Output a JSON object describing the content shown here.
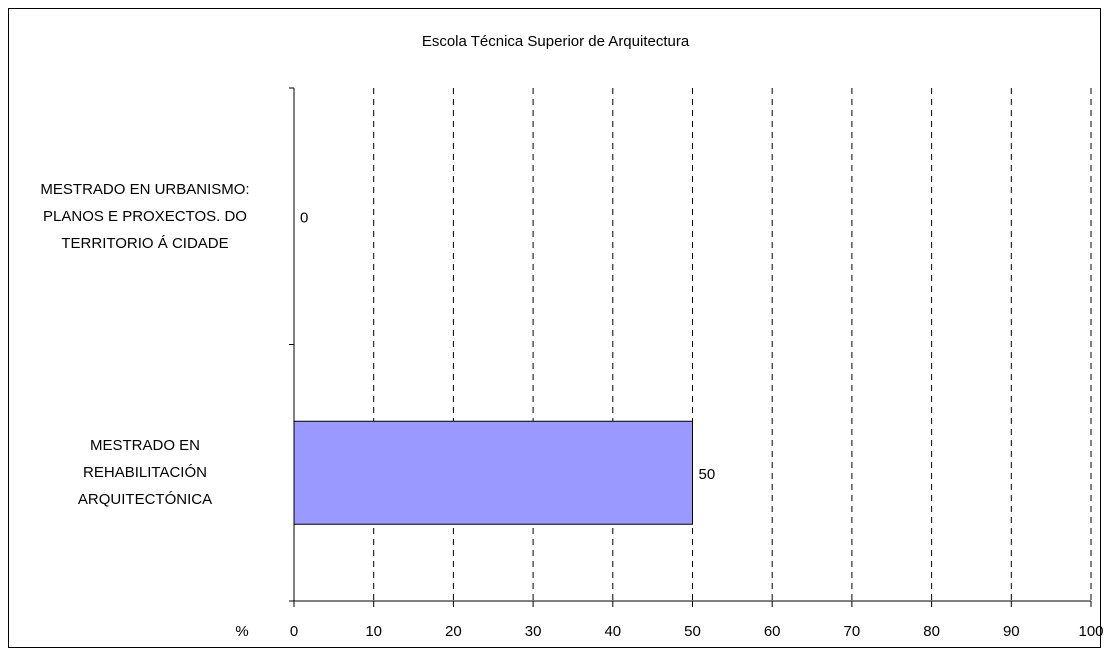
{
  "chart_data": {
    "type": "bar",
    "orientation": "horizontal",
    "title": "Escola Técnica Superior de Arquitectura",
    "xlabel": "%",
    "ylabel": "",
    "categories": [
      "MESTRADO EN URBANISMO: PLANOS E PROXECTOS. DO TERRITORIO Á CIDADE",
      "MESTRADO EN REHABILITACIÓN ARQUITECTÓNICA"
    ],
    "category_lines": [
      [
        "MESTRADO EN URBANISMO:",
        "PLANOS E PROXECTOS. DO",
        "TERRITORIO Á CIDADE"
      ],
      [
        "MESTRADO EN",
        "REHABILITACIÓN",
        "ARQUITECTÓNICA"
      ]
    ],
    "values": [
      0,
      50
    ],
    "data_labels": [
      "0",
      "50"
    ],
    "xlim": [
      0,
      100
    ],
    "xticks": [
      "0",
      "10",
      "20",
      "30",
      "40",
      "50",
      "60",
      "70",
      "80",
      "90",
      "100"
    ],
    "grid": "vertical-dashed",
    "bar_color": "#9999ff"
  }
}
